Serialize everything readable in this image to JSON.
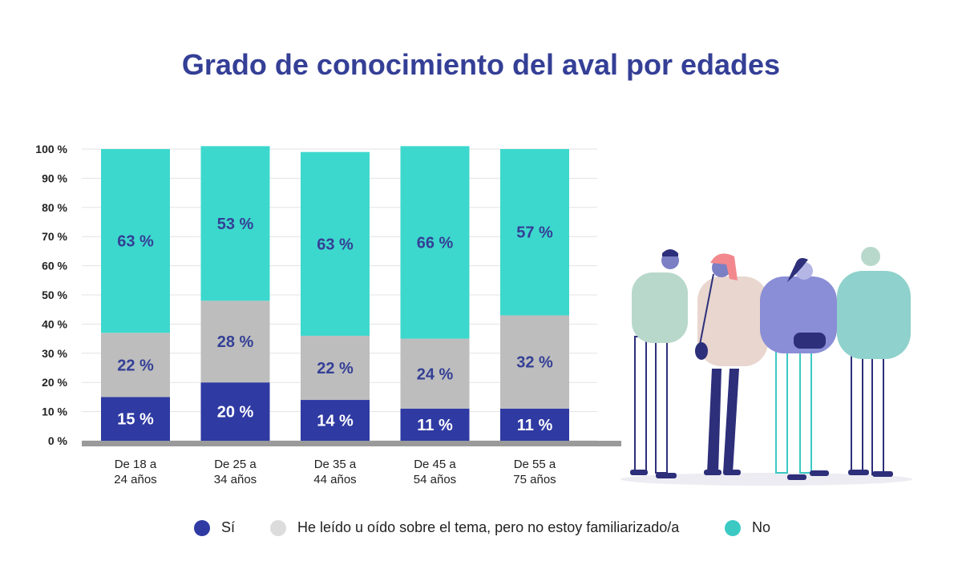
{
  "colors": {
    "si": "#2f3aa3",
    "gris": "#bdbdbd",
    "no": "#3dd8cd",
    "title": "#343f96",
    "label": "#343f96"
  },
  "chart_data": {
    "type": "bar",
    "stacked": true,
    "title": "Grado de conocimiento del aval por edades",
    "categories": [
      "De 18 a|24 años",
      "De 25 a|34 años",
      "De 35 a|44 años",
      "De 45 a|54 años",
      "De 55 a|75 años"
    ],
    "series": [
      {
        "name": "Sí",
        "color": "#2f3aa3",
        "values": [
          15,
          20,
          14,
          11,
          11
        ],
        "labels": [
          "15 %",
          "20 %",
          "14 %",
          "11 %",
          "11 %"
        ]
      },
      {
        "name": "He leído u oído sobre el tema, pero no estoy familiarizado/a",
        "color": "#bdbdbd",
        "values": [
          22,
          28,
          22,
          24,
          32
        ],
        "labels": [
          "22 %",
          "28 %",
          "22 %",
          "24 %",
          "32 %"
        ]
      },
      {
        "name": "No",
        "color": "#3dd8cd",
        "values": [
          63,
          53,
          63,
          66,
          57
        ],
        "labels": [
          "63 %",
          "53 %",
          "63 %",
          "66 %",
          "57 %"
        ]
      }
    ],
    "ylim": [
      0,
      100
    ],
    "yticks": [
      "0 %",
      "10 %",
      "20 %",
      "30 %",
      "40 %",
      "50 %",
      "60 %",
      "70 %",
      "80 %",
      "90 %",
      "100 %"
    ],
    "grid": true,
    "legend_position": "bottom"
  }
}
